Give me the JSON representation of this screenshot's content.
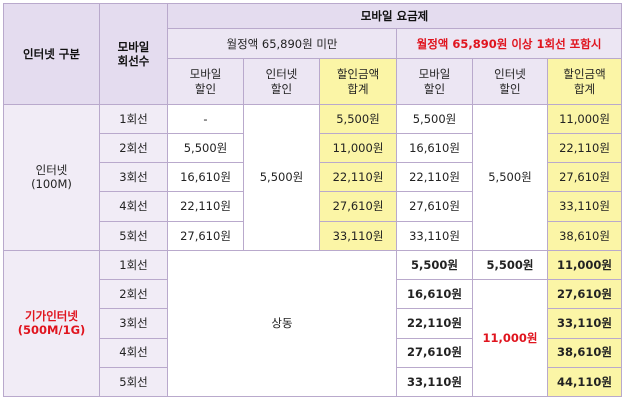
{
  "header": {
    "internet_type": "인터넷 구분",
    "mobile_lines": "모바일\n회선수",
    "mobile_plan": "모바일 요금제",
    "under_plan": "월정액 65,890원 미만",
    "over_plan": "월정액 65,890원 이상 1회선 포함시",
    "col_mobile_discount": "모바일\n할인",
    "col_internet_discount": "인터넷\n할인",
    "col_total": "할인금액\n합계"
  },
  "groups": [
    {
      "name": "인터넷\n(100M)",
      "internet_discount_under": "5,500원",
      "internet_discount_over": "5,500원",
      "rows": [
        {
          "lines": "1회선",
          "mobile_under": "-",
          "total_under": "5,500원",
          "mobile_over": "5,500원",
          "total_over": "11,000원"
        },
        {
          "lines": "2회선",
          "mobile_under": "5,500원",
          "total_under": "11,000원",
          "mobile_over": "16,610원",
          "total_over": "22,110원"
        },
        {
          "lines": "3회선",
          "mobile_under": "16,610원",
          "total_under": "22,110원",
          "mobile_over": "22,110원",
          "total_over": "27,610원"
        },
        {
          "lines": "4회선",
          "mobile_under": "22,110원",
          "total_under": "27,610원",
          "mobile_over": "27,610원",
          "total_over": "33,110원"
        },
        {
          "lines": "5회선",
          "mobile_under": "27,610원",
          "total_under": "33,110원",
          "mobile_over": "33,110원",
          "total_over": "38,610원"
        }
      ]
    },
    {
      "name": "기가인터넷\n(500M/1G)",
      "same_label": "상동",
      "first_internet_discount_over": "5,500원",
      "internet_discount_over": "11,000원",
      "rows": [
        {
          "lines": "1회선",
          "mobile_over": "5,500원",
          "total_over": "11,000원"
        },
        {
          "lines": "2회선",
          "mobile_over": "16,610원",
          "total_over": "27,610원"
        },
        {
          "lines": "3회선",
          "mobile_over": "22,110원",
          "total_over": "33,110원"
        },
        {
          "lines": "4회선",
          "mobile_over": "27,610원",
          "total_over": "38,610원"
        },
        {
          "lines": "5회선",
          "mobile_over": "33,110원",
          "total_over": "44,110원"
        }
      ]
    }
  ],
  "colors": {
    "header_bg": "#e4dcef",
    "highlight_yellow": "#fbf5a6",
    "accent_red": "#e0141e",
    "border": "#b9a9cc"
  }
}
